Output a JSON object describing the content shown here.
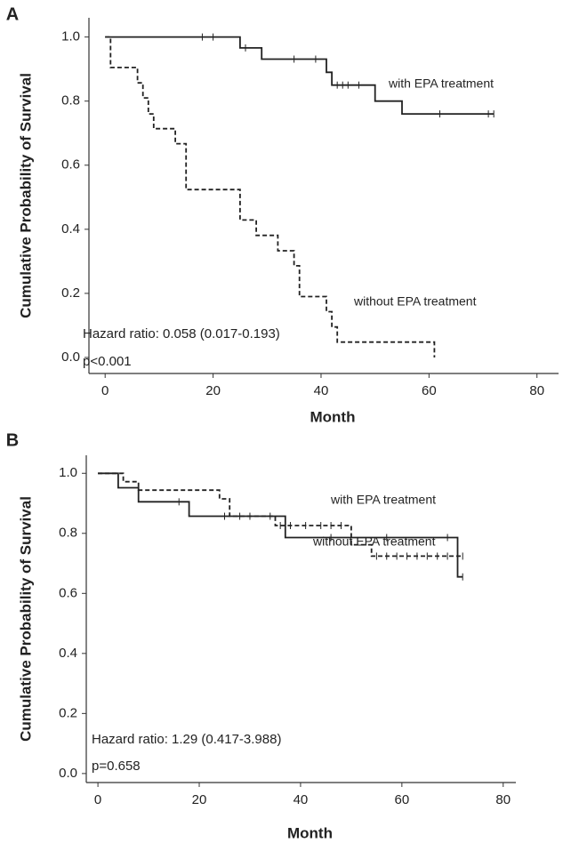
{
  "chart_data": [
    {
      "type": "step",
      "panel": "A",
      "x_label": "Month",
      "y_label": "Cumulative Probability of Survival",
      "annotations": [
        "Hazard ratio: 0.058 (0.017-0.193)",
        "p<0.001"
      ],
      "xlim": [
        -3,
        84
      ],
      "ylim": [
        -0.05,
        1.06
      ],
      "xticks": [
        0,
        20,
        40,
        60,
        80
      ],
      "yticks": [
        {
          "value": 0,
          "label": "0.0"
        },
        0.2,
        0.4,
        0.6,
        0.8,
        {
          "value": 1,
          "label": "1.0"
        }
      ],
      "series": [
        {
          "name": "with EPA treatment",
          "color": "#222222",
          "dash": "solid",
          "x": [
            0,
            25,
            29,
            41,
            42,
            50,
            55,
            72
          ],
          "values": [
            1.0,
            0.966,
            0.931,
            0.89,
            0.85,
            0.8,
            0.76,
            0.76
          ],
          "censored": [
            18,
            20,
            26,
            35,
            39,
            43,
            44,
            45,
            47,
            62,
            71,
            72
          ]
        },
        {
          "name": "without EPA treatment",
          "color": "#222222",
          "dash": "dashed",
          "x": [
            0,
            1,
            6,
            7,
            8,
            9,
            13,
            15,
            25,
            28,
            32,
            35,
            36,
            41,
            42,
            43,
            61
          ],
          "values": [
            1.0,
            0.905,
            0.857,
            0.81,
            0.76,
            0.714,
            0.667,
            0.524,
            0.429,
            0.381,
            0.333,
            0.286,
            0.19,
            0.143,
            0.095,
            0.048,
            0.0
          ],
          "censored": []
        }
      ]
    },
    {
      "type": "step",
      "panel": "B",
      "x_label": "Month",
      "y_label": "Cumulative Probability of Survival",
      "annotations": [
        "Hazard ratio: 1.29 (0.417-3.988)",
        "p=0.658"
      ],
      "xlim": [
        -2.3,
        82.5
      ],
      "ylim": [
        -0.03,
        1.06
      ],
      "xticks": [
        0,
        20,
        40,
        60,
        80
      ],
      "yticks": [
        {
          "value": 0,
          "label": "0.0"
        },
        0.2,
        0.4,
        0.6,
        0.8,
        {
          "value": 1,
          "label": "1.0"
        }
      ],
      "series": [
        {
          "name": "with EPA treatment",
          "color": "#222222",
          "dash": "solid",
          "x": [
            0,
            4,
            8,
            18,
            37,
            71,
            72
          ],
          "values": [
            1.0,
            0.952,
            0.905,
            0.857,
            0.786,
            0.655,
            0.655
          ],
          "censored": [
            16,
            25,
            34,
            46,
            57,
            69,
            72
          ]
        },
        {
          "name": "without EPA treatment",
          "color": "#222222",
          "dash": "dashed",
          "x": [
            0,
            5,
            8,
            24,
            26,
            35,
            50,
            54,
            72
          ],
          "values": [
            1.0,
            0.972,
            0.944,
            0.915,
            0.857,
            0.826,
            0.762,
            0.724,
            0.724
          ],
          "censored": [
            28,
            30,
            36,
            38,
            41,
            44,
            46,
            48,
            55,
            57,
            59,
            61,
            63,
            65,
            67,
            69,
            72
          ]
        }
      ]
    }
  ]
}
